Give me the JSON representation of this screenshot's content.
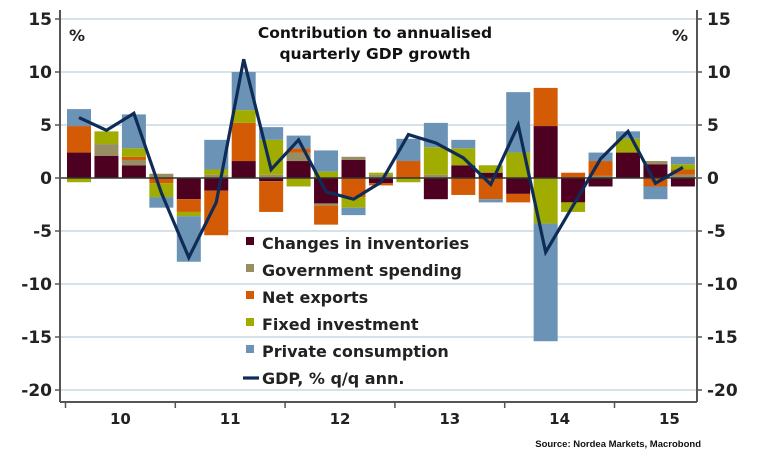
{
  "chart_data": {
    "type": "bar",
    "stacked": true,
    "title": "Contribution to annualised quarterly GDP growth",
    "title_lines": [
      "Contribution to annualised",
      "quarterly GDP growth"
    ],
    "ylabel_left": "%",
    "ylabel_right": "%",
    "ylim": [
      -20,
      15
    ],
    "yticks": [
      15,
      10,
      5,
      0,
      -5,
      -10,
      -15,
      -20
    ],
    "ytick_labels": [
      "15",
      "10",
      "5",
      "0",
      "-5",
      "-10",
      "-15",
      "-20"
    ],
    "grid": true,
    "xlabel": "",
    "x_year_labels": [
      "10",
      "11",
      "12",
      "13",
      "14",
      "15"
    ],
    "categories": [
      "2010Q1",
      "2010Q2",
      "2010Q3",
      "2010Q4",
      "2011Q1",
      "2011Q2",
      "2011Q3",
      "2011Q4",
      "2012Q1",
      "2012Q2",
      "2012Q3",
      "2012Q4",
      "2013Q1",
      "2013Q2",
      "2013Q3",
      "2013Q4",
      "2014Q1",
      "2014Q2",
      "2014Q3",
      "2014Q4",
      "2015Q1",
      "2015Q2",
      "2015Q3"
    ],
    "series": [
      {
        "name": "Changes in inventories",
        "color": "#4e0021",
        "values": [
          2.4,
          2.1,
          1.2,
          0.0,
          -2.0,
          -1.2,
          1.6,
          -0.3,
          1.6,
          -2.4,
          1.7,
          -0.5,
          0.0,
          -2.0,
          1.2,
          0.5,
          -1.5,
          4.9,
          -2.3,
          -0.8,
          2.4,
          1.3,
          -0.8
        ]
      },
      {
        "name": "Government spending",
        "color": "#978e63",
        "values": [
          0.0,
          1.1,
          0.5,
          0.4,
          0.0,
          0.3,
          0.0,
          0.3,
          0.8,
          -0.2,
          0.3,
          0.3,
          0.0,
          0.3,
          0.0,
          0.0,
          0.0,
          0.0,
          0.0,
          0.2,
          0.0,
          0.3,
          0.3
        ]
      },
      {
        "name": "Net exports",
        "color": "#d45b05",
        "values": [
          2.5,
          0.0,
          0.3,
          -0.5,
          -1.2,
          -4.2,
          3.6,
          -2.9,
          0.4,
          -1.8,
          -1.8,
          -0.2,
          1.6,
          0.0,
          -1.6,
          -2.0,
          -0.8,
          3.6,
          0.5,
          1.4,
          0.0,
          -0.8,
          0.5
        ]
      },
      {
        "name": "Fixed investment",
        "color": "#a0ac00",
        "values": [
          -0.4,
          1.2,
          0.8,
          -1.3,
          -0.4,
          0.5,
          1.2,
          3.3,
          -0.8,
          0.6,
          -1.0,
          0.2,
          -0.4,
          2.6,
          1.6,
          0.7,
          2.4,
          -4.3,
          -0.9,
          0.0,
          1.3,
          0.0,
          0.5
        ]
      },
      {
        "name": "Private consumption",
        "color": "#6b93b6",
        "values": [
          1.6,
          0.0,
          3.2,
          -1.0,
          -4.3,
          2.8,
          3.6,
          1.2,
          1.2,
          2.0,
          -0.7,
          0.0,
          2.1,
          2.3,
          0.8,
          -0.3,
          5.7,
          -11.1,
          0.0,
          0.8,
          0.7,
          -1.2,
          0.7
        ]
      }
    ],
    "line_series": {
      "name": "GDP, % q/q ann.",
      "color": "#0f2c57",
      "values": [
        5.7,
        4.5,
        6.1,
        -1.4,
        -7.5,
        -2.3,
        11.2,
        0.8,
        3.6,
        -1.3,
        -2.0,
        -0.4,
        4.1,
        3.3,
        1.9,
        -0.6,
        5.0,
        -7.0,
        -2.6,
        1.8,
        4.4,
        -0.5,
        1.0
      ]
    },
    "legend": {
      "placement": "center-bottom",
      "entries": [
        "Changes in inventories",
        "Government spending",
        "Net exports",
        "Fixed investment",
        "Private consumption",
        "GDP, % q/q ann."
      ]
    },
    "source": "Source: Nordea Markets, Macrobond"
  },
  "colors": {
    "grid": "#d6e2ea",
    "axis": "#555555",
    "zero_line": "#333333"
  }
}
